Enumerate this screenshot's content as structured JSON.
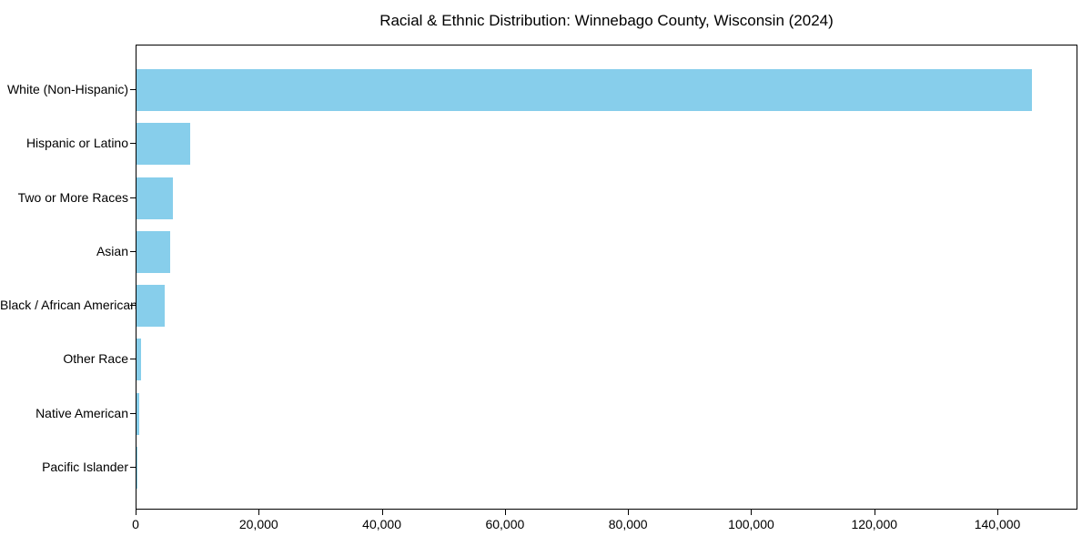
{
  "chart_data": {
    "type": "bar",
    "orientation": "horizontal",
    "title": "Racial & Ethnic Distribution: Winnebago County, Wisconsin (2024)",
    "categories": [
      "White (Non-Hispanic)",
      "Hispanic or Latino",
      "Two or More Races",
      "Asian",
      "Black / African American",
      "Other Race",
      "Native American",
      "Pacific Islander"
    ],
    "values": [
      145800,
      8800,
      5900,
      5500,
      4600,
      750,
      400,
      50
    ],
    "xlabel": "",
    "ylabel": "",
    "xlim": [
      0,
      153000
    ],
    "x_ticks": [
      0,
      20000,
      40000,
      60000,
      80000,
      100000,
      120000,
      140000
    ],
    "x_tick_labels": [
      "0",
      "20,000",
      "40,000",
      "60,000",
      "80,000",
      "100,000",
      "120,000",
      "140,000"
    ],
    "bar_color": "#87CEEB",
    "axis_color": "#000000",
    "background_color": "#ffffff",
    "grid": false,
    "legend": "none"
  }
}
